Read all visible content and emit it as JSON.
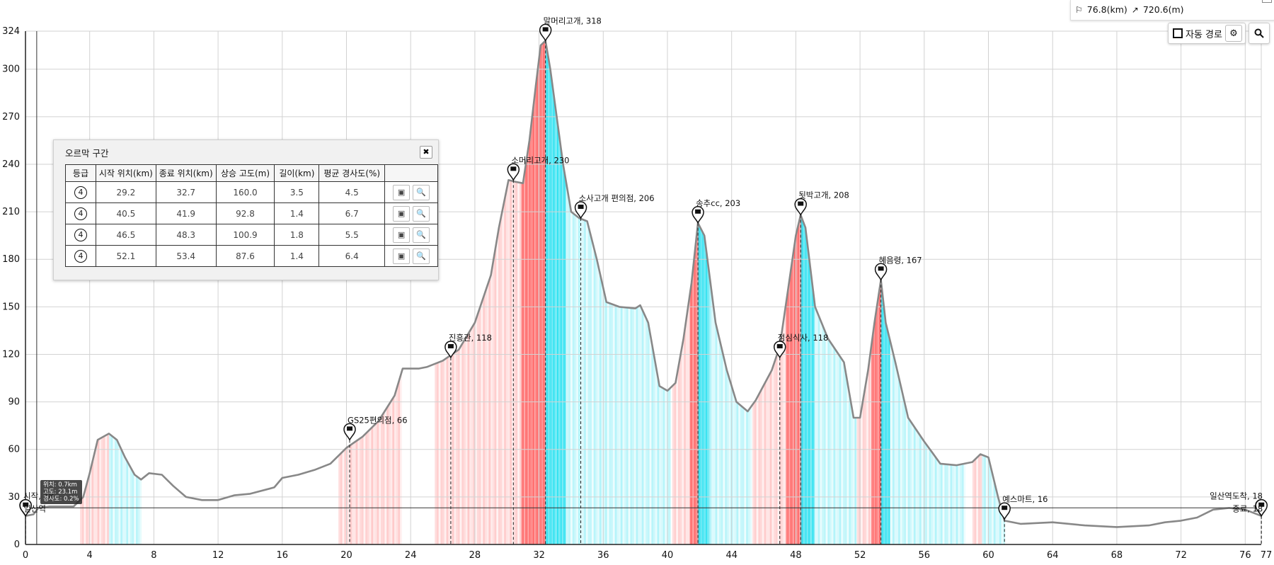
{
  "info": {
    "distance": "76.8(km)",
    "ascent": "720.6(m)"
  },
  "controls": {
    "auto_route_label": "자동 경로"
  },
  "panel": {
    "title": "오르막 구간",
    "headers": [
      "등급",
      "시작 위치(km)",
      "종료 위치(km)",
      "상승 고도(m)",
      "길이(km)",
      "평균 경사도(%)",
      ""
    ],
    "rows": [
      {
        "grade": "4",
        "start": "29.2",
        "end": "32.7",
        "gain": "160.0",
        "length": "3.5",
        "slope": "4.5"
      },
      {
        "grade": "4",
        "start": "40.5",
        "end": "41.9",
        "gain": "92.8",
        "length": "1.4",
        "slope": "6.7"
      },
      {
        "grade": "4",
        "start": "46.5",
        "end": "48.3",
        "gain": "100.9",
        "length": "1.8",
        "slope": "5.5"
      },
      {
        "grade": "4",
        "start": "52.1",
        "end": "53.4",
        "gain": "87.6",
        "length": "1.4",
        "slope": "6.4"
      }
    ]
  },
  "tooltip": {
    "pos": "위치: 0.7km",
    "alt": "고도: 23.1m",
    "slope": "경사도: 0.2%"
  },
  "colors": {
    "profile": "#888888",
    "uphill": "#ff5a5a",
    "downhill": "#25e0f0",
    "grid": "#d2d2d2"
  },
  "chart_data": {
    "type": "area",
    "xlim": [
      0,
      77
    ],
    "ylim": [
      0,
      324
    ],
    "xticks": [
      0,
      4,
      8,
      12,
      16,
      20,
      24,
      28,
      32,
      36,
      40,
      44,
      48,
      52,
      56,
      60,
      64,
      68,
      72,
      76
    ],
    "xticks_extra": [
      77
    ],
    "yticks": [
      0,
      30,
      60,
      90,
      120,
      150,
      180,
      210,
      240,
      270,
      300,
      324
    ],
    "grid": true,
    "cursor": {
      "x": 0.7,
      "y": 23.1
    },
    "profile": [
      [
        0,
        18
      ],
      [
        0.5,
        19
      ],
      [
        0.8,
        23
      ],
      [
        1.5,
        24
      ],
      [
        3,
        24
      ],
      [
        3.6,
        30
      ],
      [
        4,
        45
      ],
      [
        4.5,
        66
      ],
      [
        5.2,
        70
      ],
      [
        5.7,
        66
      ],
      [
        6.2,
        55
      ],
      [
        6.8,
        44
      ],
      [
        7.2,
        41
      ],
      [
        7.7,
        45
      ],
      [
        8.5,
        44
      ],
      [
        9.2,
        37
      ],
      [
        10,
        30
      ],
      [
        11,
        28
      ],
      [
        12,
        28
      ],
      [
        13,
        31
      ],
      [
        14,
        32
      ],
      [
        15.5,
        36
      ],
      [
        16,
        42
      ],
      [
        17,
        44
      ],
      [
        18,
        47
      ],
      [
        19,
        51
      ],
      [
        20,
        61
      ],
      [
        21,
        68
      ],
      [
        22,
        78
      ],
      [
        23,
        94
      ],
      [
        23.5,
        111
      ],
      [
        24.5,
        111
      ],
      [
        25,
        112
      ],
      [
        26,
        116
      ],
      [
        27,
        123
      ],
      [
        28,
        140
      ],
      [
        29,
        170
      ],
      [
        29.5,
        200
      ],
      [
        30.1,
        230
      ],
      [
        30.5,
        229
      ],
      [
        31,
        228
      ],
      [
        31.4,
        255
      ],
      [
        31.8,
        290
      ],
      [
        32.1,
        315
      ],
      [
        32.4,
        318
      ],
      [
        32.7,
        300
      ],
      [
        33.5,
        240
      ],
      [
        34,
        210
      ],
      [
        34.5,
        206
      ],
      [
        35,
        204
      ],
      [
        35.6,
        180
      ],
      [
        36.2,
        153
      ],
      [
        37,
        150
      ],
      [
        38,
        149
      ],
      [
        38.3,
        151
      ],
      [
        38.8,
        140
      ],
      [
        39.5,
        100
      ],
      [
        40,
        97
      ],
      [
        40.5,
        102
      ],
      [
        41,
        130
      ],
      [
        41.5,
        165
      ],
      [
        41.9,
        203
      ],
      [
        42.3,
        195
      ],
      [
        43,
        140
      ],
      [
        43.7,
        110
      ],
      [
        44.3,
        90
      ],
      [
        45,
        84
      ],
      [
        45.5,
        91
      ],
      [
        46.5,
        110
      ],
      [
        47,
        125
      ],
      [
        47.5,
        160
      ],
      [
        48,
        195
      ],
      [
        48.3,
        208
      ],
      [
        48.6,
        200
      ],
      [
        49.2,
        150
      ],
      [
        50,
        130
      ],
      [
        51,
        115
      ],
      [
        51.6,
        80
      ],
      [
        52,
        80
      ],
      [
        52.5,
        110
      ],
      [
        52.9,
        140
      ],
      [
        53.3,
        167
      ],
      [
        53.6,
        140
      ],
      [
        54.2,
        115
      ],
      [
        55,
        80
      ],
      [
        56,
        65
      ],
      [
        56.5,
        58
      ],
      [
        57,
        51
      ],
      [
        58,
        50
      ],
      [
        59,
        52
      ],
      [
        59.5,
        57
      ],
      [
        60,
        55
      ],
      [
        60.6,
        30
      ],
      [
        61,
        15
      ],
      [
        62,
        13
      ],
      [
        64,
        14
      ],
      [
        66,
        12
      ],
      [
        68,
        11
      ],
      [
        70,
        12
      ],
      [
        71,
        14
      ],
      [
        72,
        15
      ],
      [
        73,
        17
      ],
      [
        74,
        22
      ],
      [
        75,
        23
      ],
      [
        76,
        22
      ],
      [
        77,
        18
      ]
    ],
    "uphill_km": [
      [
        3.4,
        5.2
      ],
      [
        19.5,
        23.4
      ],
      [
        25.5,
        32.4
      ],
      [
        40.3,
        41.9
      ],
      [
        45.3,
        48.3
      ],
      [
        51.8,
        53.3
      ],
      [
        59,
        59.5
      ]
    ],
    "downhill_km": [
      [
        5.2,
        7.2
      ],
      [
        32.4,
        40.1
      ],
      [
        41.9,
        45.2
      ],
      [
        48.3,
        51.7
      ],
      [
        53.3,
        58.5
      ],
      [
        59.6,
        61
      ]
    ],
    "strong_uphill_km": [
      [
        30.9,
        32.4
      ],
      [
        41.4,
        41.9
      ],
      [
        47.4,
        48.3
      ],
      [
        52.7,
        53.3
      ]
    ],
    "strong_downhill_km": [
      [
        32.4,
        33.6
      ],
      [
        41.9,
        42.6
      ],
      [
        48.3,
        49.1
      ],
      [
        53.3,
        53.8
      ]
    ],
    "waypoints": [
      {
        "name": "시작, 18",
        "x": 0,
        "y": 18
      },
      {
        "name": "일산역",
        "x": 0.01,
        "y": 18
      },
      {
        "name": "GS25편의점, 66",
        "x": 20.2,
        "y": 66
      },
      {
        "name": "진흥관, 118",
        "x": 26.5,
        "y": 118
      },
      {
        "name": "소머리고개, 230",
        "x": 30.4,
        "y": 230
      },
      {
        "name": "말머리고개, 318",
        "x": 32.4,
        "y": 318
      },
      {
        "name": "소사고개 편의점, 206",
        "x": 34.6,
        "y": 206
      },
      {
        "name": "송추cc, 203",
        "x": 41.9,
        "y": 203
      },
      {
        "name": "점심식사, 118",
        "x": 47,
        "y": 118
      },
      {
        "name": "됫박고개, 208",
        "x": 48.3,
        "y": 208
      },
      {
        "name": "혜음령, 167",
        "x": 53.3,
        "y": 167
      },
      {
        "name": "예스마트, 16",
        "x": 61,
        "y": 16
      },
      {
        "name": "일산역도착, 18",
        "x": 77,
        "y": 18
      },
      {
        "name": "종료, 18",
        "x": 77.01,
        "y": 18
      }
    ]
  }
}
